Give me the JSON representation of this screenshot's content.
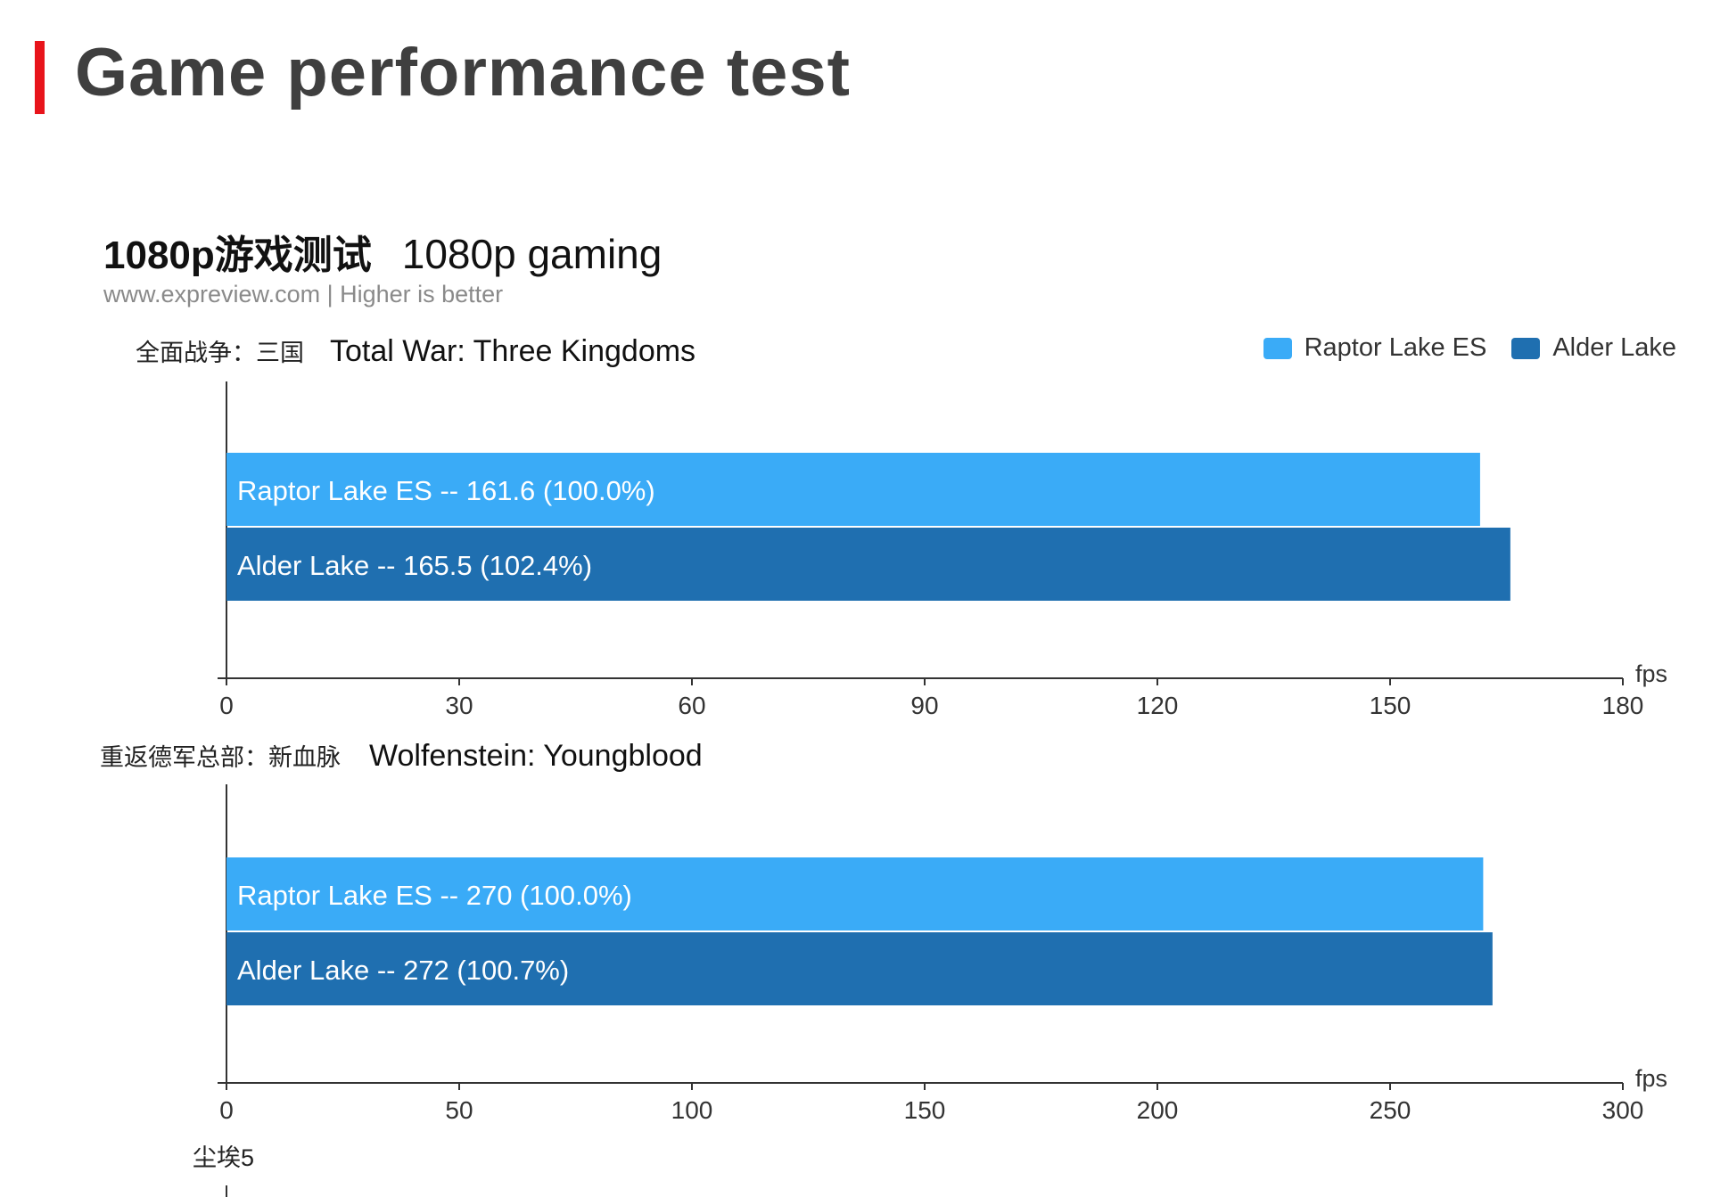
{
  "page": {
    "title": "Game performance test",
    "accent_color": "#e8141b"
  },
  "subtitle": {
    "cn": "1080p游戏测试",
    "en": "1080p gaming"
  },
  "source_note": "www.expreview.com | Higher is better",
  "legend": [
    {
      "name": "Raptor Lake ES",
      "color": "#3aabf7"
    },
    {
      "name": "Alder Lake",
      "color": "#1f6fb0"
    }
  ],
  "chart_data": [
    {
      "type": "bar",
      "orientation": "horizontal",
      "title_cn": "全面战争：三国",
      "title": "Total War: Three Kingdoms",
      "unit": "fps",
      "xlim": [
        0,
        180
      ],
      "ticks": [
        0,
        30,
        60,
        90,
        120,
        150,
        180
      ],
      "series": [
        {
          "name": "Raptor Lake ES",
          "value": 161.6,
          "percent": "100.0%",
          "label": "Raptor Lake ES  --  161.6 (100.0%)"
        },
        {
          "name": "Alder Lake",
          "value": 165.5,
          "percent": "102.4%",
          "label": "Alder Lake  --  165.5 (102.4%)"
        }
      ]
    },
    {
      "type": "bar",
      "orientation": "horizontal",
      "title_cn": "重返德军总部：新血脉",
      "title": "Wolfenstein: Youngblood",
      "unit": "fps",
      "xlim": [
        0,
        300
      ],
      "ticks": [
        0,
        50,
        100,
        150,
        200,
        250,
        300
      ],
      "series": [
        {
          "name": "Raptor Lake ES",
          "value": 270,
          "percent": "100.0%",
          "label": "Raptor Lake ES  --  270 (100.0%)"
        },
        {
          "name": "Alder Lake",
          "value": 272,
          "percent": "100.7%",
          "label": "Alder Lake  --  272 (100.7%)"
        }
      ]
    },
    {
      "type": "bar",
      "orientation": "horizontal",
      "title_cn": "尘埃5"
    }
  ]
}
